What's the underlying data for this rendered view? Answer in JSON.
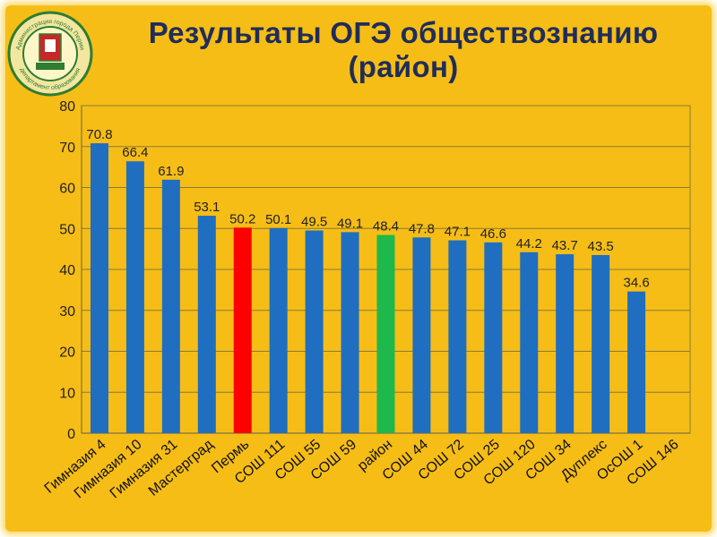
{
  "title_line1": "Результаты ОГЭ обществознанию",
  "title_line2": "(район)",
  "emblem": {
    "text_top": "Администрация города Перми",
    "text_bottom": "департамент образования"
  },
  "colors": {
    "background": "#f6bd16",
    "bar": "#1f6ec0",
    "bar_highlight_red": "#ff0000",
    "bar_highlight_green": "#1fb84a",
    "title": "#1f2d5a"
  },
  "chart_data": {
    "type": "bar",
    "categories": [
      "Гимназия 4",
      "Гимназия 10",
      "Гимназия 31",
      "Мастерград",
      "Пермь",
      "СОШ 111",
      "СОШ 55",
      "СОШ 59",
      "район",
      "СОШ 44",
      "СОШ 72",
      "СОШ 25",
      "СОШ 120",
      "СОШ 34",
      "Дуплекс",
      "ОсОШ 1",
      "СОШ 146"
    ],
    "values": [
      70.8,
      66.4,
      61.9,
      53.1,
      50.2,
      50.1,
      49.5,
      49.1,
      48.4,
      47.8,
      47.1,
      46.6,
      44.2,
      43.7,
      43.5,
      34.6,
      null
    ],
    "value_labels": [
      "70.8",
      "66.4",
      "61.9",
      "53.1",
      "50.2",
      "50.1",
      "49.5",
      "49.1",
      "48.4",
      "47.8",
      "47.1",
      "46.6",
      "44.2",
      "43.7",
      "43.5",
      "34.6",
      ""
    ],
    "highlight": {
      "Пермь": "red",
      "район": "green"
    },
    "ylim": [
      0,
      80
    ],
    "yticks": [
      "0",
      "10",
      "20",
      "30",
      "40",
      "50",
      "60",
      "70",
      "80"
    ],
    "grid": true,
    "title": "",
    "xlabel": "",
    "ylabel": ""
  }
}
